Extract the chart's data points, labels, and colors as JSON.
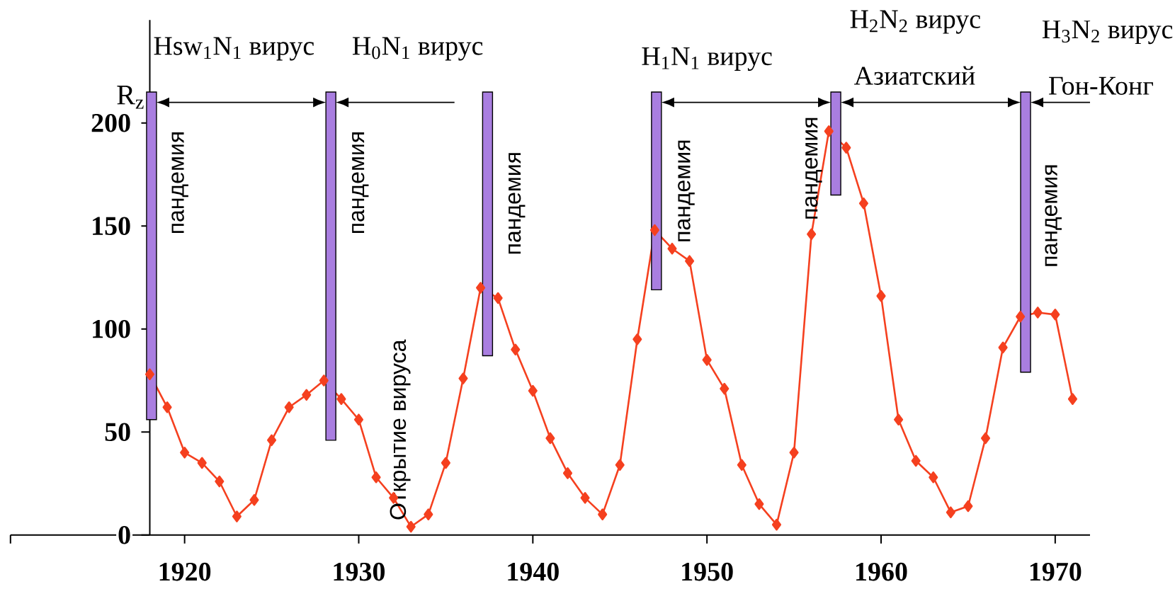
{
  "chart_data": {
    "type": "line",
    "ylabel": "R$_{z}$",
    "xlim": [
      1910,
      1972
    ],
    "ylim": [
      0,
      250
    ],
    "xticks": [
      {
        "value": 1910,
        "label": null
      },
      1920,
      1930,
      1940,
      1950,
      1960,
      1970
    ],
    "yticks": [
      0,
      50,
      100,
      150,
      200
    ],
    "marker": "diamond",
    "series": [
      {
        "color": "#f5401f",
        "x": [
          1918,
          1919,
          1920,
          1921,
          1922,
          1923,
          1924,
          1925,
          1926,
          1927,
          1928,
          1929,
          1930,
          1931,
          1932,
          1933,
          1934,
          1935,
          1936,
          1937,
          1938,
          1939,
          1940,
          1941,
          1942,
          1943,
          1944,
          1945,
          1946,
          1947,
          1948,
          1949,
          1950,
          1951,
          1952,
          1953,
          1954,
          1955,
          1956,
          1957,
          1958,
          1959,
          1960,
          1961,
          1962,
          1963,
          1964,
          1965,
          1966,
          1967,
          1968,
          1969,
          1970,
          1971
        ],
        "values": [
          78,
          62,
          40,
          35,
          26,
          9,
          17,
          46,
          62,
          68,
          75,
          66,
          56,
          28,
          18,
          4,
          10,
          35,
          76,
          120,
          115,
          90,
          70,
          47,
          30,
          18,
          10,
          34,
          95,
          148,
          139,
          133,
          85,
          71,
          34,
          15,
          5,
          40,
          146,
          196,
          188,
          161,
          116,
          56,
          36,
          28,
          11,
          14,
          47,
          91,
          106,
          108,
          107,
          66
        ]
      },
      {
        "type": "bar",
        "color": "#a97ee0",
        "x": [
          1918.1,
          1928.4,
          1937.4,
          1947.1,
          1957.4,
          1968.3
        ],
        "base": [
          56,
          46,
          87,
          119,
          165,
          79
        ],
        "values": [
          159,
          169,
          128,
          96,
          50,
          136
        ]
      }
    ],
    "annotations": [
      "Hsw$_{1}$N$_{1}$ вирус",
      "H$_{0}$N$_{1}$ вирус",
      "H$_{1}$N$_{1}$ вирус",
      "H$_{2}$N$_{2}$ вирус",
      "Азиатский",
      "H$_{3}$N$_{2}$ вирус",
      "Гон-Конг",
      "пандемия",
      "пандемия",
      "пандемия",
      "пандемия",
      "пандемия",
      "пандемия",
      "Открытие вируса"
    ]
  }
}
